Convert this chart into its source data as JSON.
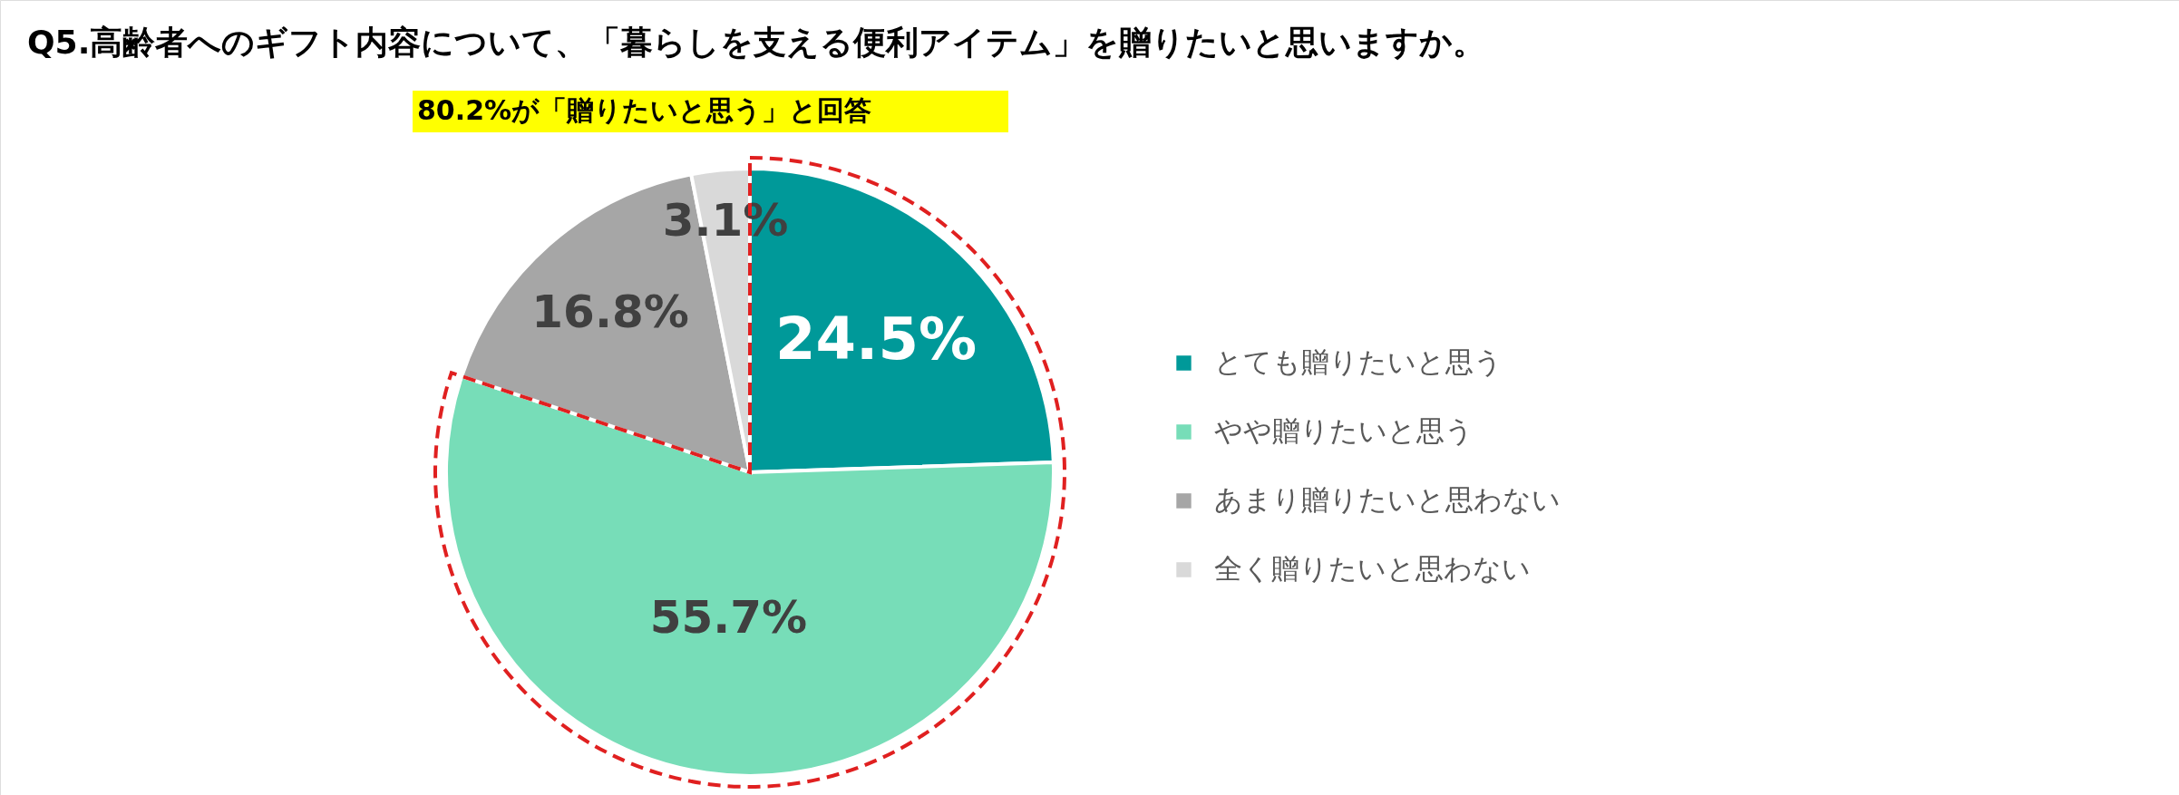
{
  "chart_data": {
    "type": "pie",
    "title": "Q5.高齢者へのギフト内容について、「暮らしを支える便利アイテム」を贈りたいと思いますか。",
    "annotations": [
      "80.2%が「贈りたいと思う」と回答"
    ],
    "categories": [
      "とても贈りたいと思う",
      "やや贈りたいと思う",
      "あまり贈りたいと思わない",
      "全く贈りたいと思わない"
    ],
    "values": [
      24.5,
      55.7,
      16.8,
      3.1
    ],
    "colors": [
      "#009999",
      "#77ddb8",
      "#a6a6a6",
      "#d9d9d9"
    ],
    "value_labels": [
      "24.5%",
      "55.7%",
      "16.8%",
      "3.1%"
    ],
    "legend": "right"
  }
}
